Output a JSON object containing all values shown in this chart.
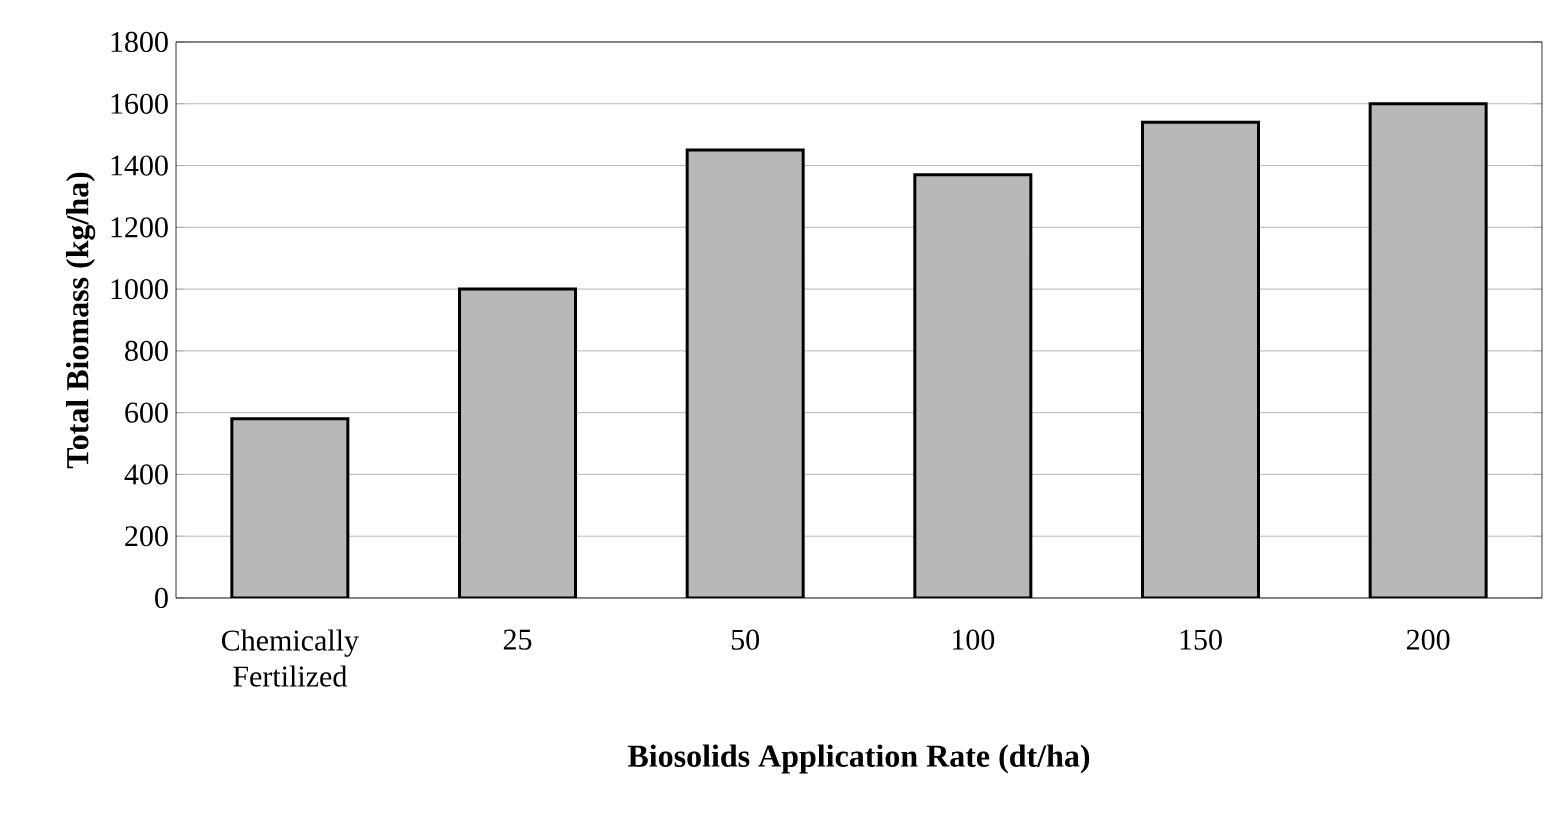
{
  "chart_data": {
    "type": "bar",
    "xlabel": "Biosolids Application Rate (dt/ha)",
    "ylabel": "Total Biomass (kg/ha)",
    "categories": [
      "Chemically Fertilized",
      "25",
      "50",
      "100",
      "150",
      "200"
    ],
    "values": [
      580,
      1000,
      1450,
      1370,
      1540,
      1600
    ],
    "color": "#b8b8b8",
    "ylim": [
      0,
      1800
    ],
    "yticks": [
      0,
      200,
      400,
      600,
      800,
      1000,
      1200,
      1400,
      1600,
      1800
    ],
    "grid": "y"
  }
}
